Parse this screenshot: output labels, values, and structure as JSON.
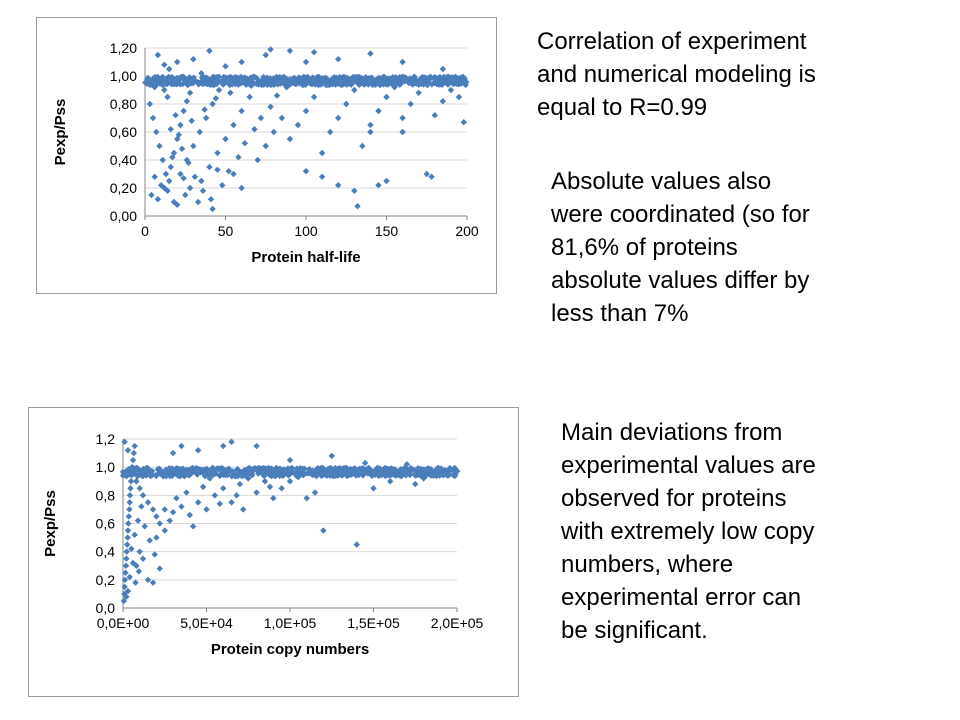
{
  "notes": {
    "correlation": [
      "Correlation of experiment",
      "and numerical modeling is",
      "equal to R=0.99"
    ],
    "absolute": [
      "Absolute values also",
      "were coordinated (so for",
      "81,6% of proteins",
      "absolute values differ by",
      "less than 7%"
    ],
    "deviations": [
      "Main deviations from",
      "experimental values are",
      "observed for proteins",
      "with extremely low copy",
      "numbers, where",
      "experimental error can",
      "be significant."
    ]
  },
  "chart_data": [
    {
      "type": "scatter",
      "title": "",
      "xlabel": "Protein half-life",
      "ylabel": "Pexp/Pss",
      "xlim": [
        0,
        200
      ],
      "ylim": [
        0,
        1.2
      ],
      "x_ticks": [
        "0",
        "50",
        "100",
        "150",
        "200"
      ],
      "y_ticks": [
        "0,00",
        "0,20",
        "0,40",
        "0,60",
        "0,80",
        "1,00",
        "1,20"
      ],
      "grid": "horizontal",
      "legend": "none",
      "marker_color": "#4a7ebb",
      "points": [
        [
          2,
          0.97
        ],
        [
          4,
          0.95
        ],
        [
          6,
          0.92
        ],
        [
          8,
          0.99
        ],
        [
          10,
          0.96
        ],
        [
          12,
          0.9
        ],
        [
          14,
          0.85
        ],
        [
          3,
          0.8
        ],
        [
          5,
          0.7
        ],
        [
          7,
          0.6
        ],
        [
          9,
          0.5
        ],
        [
          11,
          0.4
        ],
        [
          13,
          0.3
        ],
        [
          15,
          0.25
        ],
        [
          4,
          0.15
        ],
        [
          8,
          0.12
        ],
        [
          12,
          0.2
        ],
        [
          16,
          0.35
        ],
        [
          18,
          0.45
        ],
        [
          20,
          0.55
        ],
        [
          22,
          0.65
        ],
        [
          24,
          0.75
        ],
        [
          26,
          0.82
        ],
        [
          28,
          0.88
        ],
        [
          30,
          0.95
        ],
        [
          6,
          0.28
        ],
        [
          10,
          0.22
        ],
        [
          14,
          0.18
        ],
        [
          18,
          0.1
        ],
        [
          22,
          0.3
        ],
        [
          26,
          0.4
        ],
        [
          30,
          0.5
        ],
        [
          34,
          0.6
        ],
        [
          38,
          0.7
        ],
        [
          42,
          0.8
        ],
        [
          46,
          0.9
        ],
        [
          20,
          0.08
        ],
        [
          25,
          0.15
        ],
        [
          35,
          0.25
        ],
        [
          40,
          0.35
        ],
        [
          45,
          0.45
        ],
        [
          50,
          0.55
        ],
        [
          55,
          0.65
        ],
        [
          60,
          0.75
        ],
        [
          65,
          0.85
        ],
        [
          15,
          1.05
        ],
        [
          20,
          1.1
        ],
        [
          8,
          1.15
        ],
        [
          12,
          1.08
        ],
        [
          30,
          1.12
        ],
        [
          40,
          1.18
        ],
        [
          16,
          0.62
        ],
        [
          19,
          0.72
        ],
        [
          23,
          0.48
        ],
        [
          27,
          0.38
        ],
        [
          31,
          0.28
        ],
        [
          36,
          0.18
        ],
        [
          41,
          0.12
        ],
        [
          48,
          0.22
        ],
        [
          52,
          0.32
        ],
        [
          58,
          0.42
        ],
        [
          62,
          0.52
        ],
        [
          68,
          0.62
        ],
        [
          72,
          0.7
        ],
        [
          78,
          0.78
        ],
        [
          82,
          0.86
        ],
        [
          88,
          0.92
        ],
        [
          55,
          0.3
        ],
        [
          60,
          0.2
        ],
        [
          70,
          0.4
        ],
        [
          75,
          0.5
        ],
        [
          80,
          0.6
        ],
        [
          85,
          0.7
        ],
        [
          90,
          0.55
        ],
        [
          95,
          0.65
        ],
        [
          100,
          0.75
        ],
        [
          105,
          0.85
        ],
        [
          110,
          0.45
        ],
        [
          115,
          0.6
        ],
        [
          120,
          0.7
        ],
        [
          125,
          0.8
        ],
        [
          130,
          0.9
        ],
        [
          135,
          0.5
        ],
        [
          140,
          0.65
        ],
        [
          145,
          0.75
        ],
        [
          150,
          0.85
        ],
        [
          155,
          0.92
        ],
        [
          160,
          0.7
        ],
        [
          165,
          0.8
        ],
        [
          170,
          0.88
        ],
        [
          175,
          0.3
        ],
        [
          178,
          0.28
        ],
        [
          180,
          0.72
        ],
        [
          185,
          0.82
        ],
        [
          190,
          0.9
        ],
        [
          195,
          0.85
        ],
        [
          198,
          0.67
        ],
        [
          100,
          0.32
        ],
        [
          110,
          0.28
        ],
        [
          120,
          0.22
        ],
        [
          130,
          0.18
        ],
        [
          132,
          0.07
        ],
        [
          145,
          0.22
        ],
        [
          150,
          0.25
        ],
        [
          140,
          0.6
        ],
        [
          160,
          0.6
        ],
        [
          120,
          1.12
        ],
        [
          90,
          1.18
        ],
        [
          78,
          1.19
        ],
        [
          75,
          1.15
        ],
        [
          100,
          1.1
        ],
        [
          105,
          1.17
        ],
        [
          140,
          1.16
        ],
        [
          160,
          1.1
        ],
        [
          185,
          1.05
        ],
        [
          60,
          1.1
        ],
        [
          50,
          1.07
        ],
        [
          35,
          1.02
        ],
        [
          45,
          0.33
        ],
        [
          42,
          0.05
        ],
        [
          33,
          0.1
        ],
        [
          28,
          0.2
        ],
        [
          24,
          0.27
        ],
        [
          17,
          0.42
        ],
        [
          21,
          0.58
        ],
        [
          29,
          0.68
        ],
        [
          37,
          0.76
        ],
        [
          44,
          0.84
        ],
        [
          53,
          0.88
        ],
        [
          66,
          0.93
        ]
      ]
    },
    {
      "type": "scatter",
      "title": "",
      "xlabel": "Protein copy numbers",
      "ylabel": "Pexp/Pss",
      "xlim": [
        0,
        200000
      ],
      "ylim": [
        0,
        1.2
      ],
      "x_ticks": [
        "0,0E+00",
        "5,0E+04",
        "1,0E+05",
        "1,5E+05",
        "2,0E+05"
      ],
      "y_ticks": [
        "0,0",
        "0,2",
        "0,4",
        "0,6",
        "0,8",
        "1,0",
        "1,2"
      ],
      "grid": "horizontal",
      "legend": "none",
      "marker_color": "#4a7ebb",
      "points": [
        [
          500,
          0.05
        ],
        [
          800,
          0.1
        ],
        [
          1000,
          0.15
        ],
        [
          1200,
          0.2
        ],
        [
          1500,
          0.25
        ],
        [
          1800,
          0.3
        ],
        [
          2000,
          0.35
        ],
        [
          2200,
          0.4
        ],
        [
          2500,
          0.45
        ],
        [
          2800,
          0.5
        ],
        [
          3000,
          0.55
        ],
        [
          3200,
          0.6
        ],
        [
          3500,
          0.65
        ],
        [
          3800,
          0.7
        ],
        [
          4000,
          0.75
        ],
        [
          4200,
          0.8
        ],
        [
          4500,
          0.85
        ],
        [
          4800,
          0.9
        ],
        [
          5000,
          0.95
        ],
        [
          5500,
          1.0
        ],
        [
          6000,
          1.05
        ],
        [
          6500,
          1.1
        ],
        [
          7000,
          1.15
        ],
        [
          1000,
          1.18
        ],
        [
          3000,
          1.12
        ],
        [
          8000,
          0.9
        ],
        [
          10000,
          0.85
        ],
        [
          12000,
          0.8
        ],
        [
          15000,
          0.75
        ],
        [
          18000,
          0.7
        ],
        [
          20000,
          0.65
        ],
        [
          22000,
          0.6
        ],
        [
          25000,
          0.55
        ],
        [
          8000,
          0.3
        ],
        [
          10000,
          0.4
        ],
        [
          12000,
          0.35
        ],
        [
          15000,
          0.2
        ],
        [
          18000,
          0.18
        ],
        [
          20000,
          0.5
        ],
        [
          25000,
          0.7
        ],
        [
          30000,
          0.68
        ],
        [
          35000,
          0.72
        ],
        [
          40000,
          0.66
        ],
        [
          45000,
          0.75
        ],
        [
          50000,
          0.7
        ],
        [
          55000,
          0.8
        ],
        [
          60000,
          0.85
        ],
        [
          65000,
          0.75
        ],
        [
          70000,
          0.88
        ],
        [
          75000,
          0.92
        ],
        [
          80000,
          0.82
        ],
        [
          85000,
          0.9
        ],
        [
          90000,
          0.78
        ],
        [
          95000,
          0.85
        ],
        [
          100000,
          0.9
        ],
        [
          110000,
          0.78
        ],
        [
          115000,
          0.82
        ],
        [
          120000,
          0.55
        ],
        [
          140000,
          0.45
        ],
        [
          150000,
          0.85
        ],
        [
          160000,
          0.9
        ],
        [
          175000,
          0.88
        ],
        [
          180000,
          0.92
        ],
        [
          195000,
          0.95
        ],
        [
          200000,
          0.97
        ],
        [
          30000,
          1.1
        ],
        [
          35000,
          1.15
        ],
        [
          45000,
          1.12
        ],
        [
          60000,
          1.15
        ],
        [
          65000,
          1.18
        ],
        [
          80000,
          1.15
        ],
        [
          100000,
          1.05
        ],
        [
          125000,
          1.08
        ],
        [
          145000,
          1.03
        ],
        [
          170000,
          1.02
        ],
        [
          5000,
          0.42
        ],
        [
          7000,
          0.52
        ],
        [
          9000,
          0.62
        ],
        [
          11000,
          0.72
        ],
        [
          13000,
          0.58
        ],
        [
          16000,
          0.48
        ],
        [
          19000,
          0.38
        ],
        [
          22000,
          0.28
        ],
        [
          2000,
          0.08
        ],
        [
          3000,
          0.12
        ],
        [
          4000,
          0.22
        ],
        [
          6000,
          0.32
        ],
        [
          7500,
          0.18
        ],
        [
          9500,
          0.26
        ],
        [
          28000,
          0.62
        ],
        [
          32000,
          0.78
        ],
        [
          38000,
          0.82
        ],
        [
          42000,
          0.58
        ],
        [
          48000,
          0.86
        ],
        [
          52000,
          0.92
        ],
        [
          58000,
          0.74
        ],
        [
          68000,
          0.8
        ],
        [
          72000,
          0.7
        ],
        [
          88000,
          0.86
        ],
        [
          105000,
          0.93
        ]
      ]
    }
  ]
}
